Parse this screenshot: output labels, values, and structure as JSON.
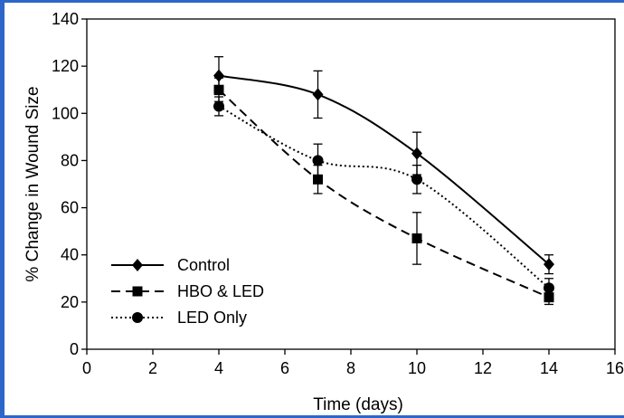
{
  "chart_data": {
    "type": "line",
    "title": "",
    "xlabel": "Time (days)",
    "ylabel": "% Change in Wound Size",
    "xlim": [
      0,
      16
    ],
    "ylim": [
      0,
      140
    ],
    "xticks": [
      0,
      2,
      4,
      6,
      8,
      10,
      12,
      14,
      16
    ],
    "yticks": [
      0,
      20,
      40,
      60,
      80,
      100,
      120,
      140
    ],
    "xtick_labels": [
      "0",
      "2",
      "4",
      "6",
      "8",
      "10",
      "12",
      "14",
      "16"
    ],
    "ytick_labels": [
      "0",
      "20",
      "40",
      "60",
      "80",
      "100",
      "120",
      "140"
    ],
    "grid": false,
    "legend_position": "bottom-left",
    "x": [
      4,
      7,
      10,
      14
    ],
    "series": [
      {
        "name": "Control",
        "values": [
          116,
          108,
          83,
          36
        ],
        "errors": [
          8,
          10,
          9,
          4
        ],
        "marker": "diamond",
        "line_style": "solid"
      },
      {
        "name": "HBO & LED",
        "values": [
          110,
          72,
          47,
          22
        ],
        "errors": [
          5,
          6,
          11,
          3
        ],
        "marker": "square",
        "line_style": "dashed"
      },
      {
        "name": "LED Only",
        "values": [
          103,
          80,
          72,
          26
        ],
        "errors": [
          4,
          7,
          6,
          4
        ],
        "marker": "circle",
        "line_style": "dotted"
      }
    ]
  }
}
